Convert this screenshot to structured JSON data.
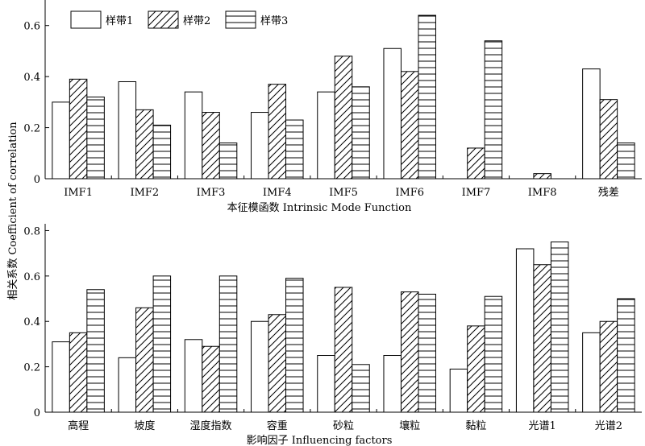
{
  "chart_data": [
    {
      "type": "bar",
      "xlabel": "本征模函数 Intrinsic Mode Function",
      "ylabel": "相关系数 Coefficient of correlation",
      "ylim": [
        0,
        0.7
      ],
      "yticks": [
        "0",
        "0.2",
        "0.4",
        "0.6"
      ],
      "categories": [
        "IMF1",
        "IMF2",
        "IMF3",
        "IMF4",
        "IMF5",
        "IMF6",
        "IMF7",
        "IMF8",
        "残差"
      ],
      "legend_position": "top-left",
      "series": [
        {
          "name": "样带1",
          "pattern": "blank",
          "values": [
            0.3,
            0.38,
            0.34,
            0.26,
            0.34,
            0.51,
            null,
            null,
            0.43
          ]
        },
        {
          "name": "样带2",
          "pattern": "diagonal",
          "values": [
            0.39,
            0.27,
            0.26,
            0.37,
            0.48,
            0.42,
            0.12,
            0.02,
            0.31
          ]
        },
        {
          "name": "样带3",
          "pattern": "horizontal",
          "values": [
            0.32,
            0.21,
            0.14,
            0.23,
            0.36,
            0.64,
            0.54,
            null,
            0.14
          ]
        }
      ]
    },
    {
      "type": "bar",
      "xlabel": "影响因子 Influencing factors",
      "ylabel": "相关系数 Coefficient of correlation",
      "ylim": [
        0,
        0.8
      ],
      "yticks": [
        "0",
        "0.2",
        "0.4",
        "0.6",
        "0.8"
      ],
      "categories": [
        "高程",
        "坡度",
        "湿度指数",
        "容重",
        "砂粒",
        "壤粒",
        "黏粒",
        "光谱1",
        "光谱2"
      ],
      "series": [
        {
          "name": "样带1",
          "pattern": "blank",
          "values": [
            0.31,
            0.24,
            0.32,
            0.4,
            0.25,
            0.25,
            0.19,
            0.72,
            0.35
          ]
        },
        {
          "name": "样带2",
          "pattern": "diagonal",
          "values": [
            0.35,
            0.46,
            0.29,
            0.43,
            0.55,
            0.53,
            0.38,
            0.65,
            0.4
          ]
        },
        {
          "name": "样带3",
          "pattern": "horizontal",
          "values": [
            0.54,
            0.6,
            0.6,
            0.59,
            0.21,
            0.52,
            0.51,
            0.75,
            0.5
          ]
        }
      ]
    }
  ]
}
